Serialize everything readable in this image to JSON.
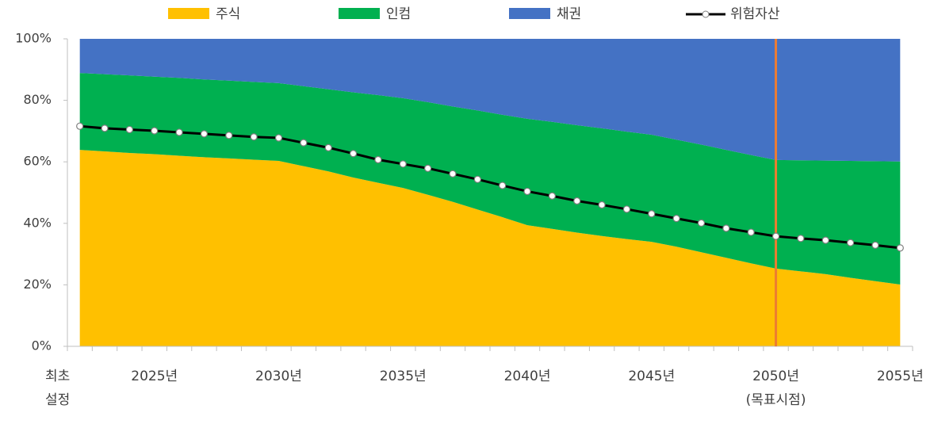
{
  "chart_data": {
    "type": "stacked_area",
    "categories": [
      "최초 설정",
      null,
      null,
      "2025년",
      null,
      null,
      null,
      null,
      "2030년",
      null,
      null,
      null,
      null,
      "2035년",
      null,
      null,
      null,
      null,
      "2040년",
      null,
      null,
      null,
      null,
      "2045년",
      null,
      null,
      null,
      null,
      "2050년",
      null,
      null,
      null,
      null,
      "2055년"
    ],
    "series": [
      {
        "name": "주식",
        "color": "#ffc000",
        "values": [
          63.9,
          63.4,
          62.9,
          62.5,
          62.0,
          61.5,
          61.1,
          60.7,
          60.3,
          58.6,
          56.9,
          54.9,
          53.2,
          51.5,
          49.3,
          47.0,
          44.5,
          42.0,
          39.4,
          38.2,
          37.0,
          35.9,
          34.9,
          34.0,
          32.4,
          30.6,
          28.8,
          27.0,
          25.3,
          24.4,
          23.5,
          22.3,
          21.2,
          20.1
        ]
      },
      {
        "name": "인컴",
        "color": "#00b050",
        "values": [
          25.0,
          25.1,
          25.2,
          25.2,
          25.3,
          25.3,
          25.3,
          25.3,
          25.3,
          26.0,
          26.7,
          27.7,
          28.5,
          29.2,
          30.1,
          31.0,
          32.2,
          33.3,
          34.6,
          34.8,
          34.9,
          35.0,
          34.9,
          34.8,
          34.8,
          35.0,
          35.1,
          35.2,
          35.3,
          36.1,
          36.9,
          38.0,
          39.0,
          40.0
        ]
      },
      {
        "name": "채권",
        "color": "#4472c4",
        "values": [
          11.1,
          11.5,
          11.9,
          12.3,
          12.7,
          13.2,
          13.6,
          14.0,
          14.4,
          15.4,
          16.4,
          17.4,
          18.3,
          19.3,
          20.6,
          22.0,
          23.3,
          24.7,
          26.0,
          27.0,
          28.1,
          29.1,
          30.2,
          31.2,
          32.8,
          34.4,
          36.1,
          37.8,
          39.4,
          39.5,
          39.6,
          39.7,
          39.8,
          39.9
        ]
      }
    ],
    "line_series": {
      "name": "위험자산",
      "color": "#000000",
      "values": [
        71.6,
        70.9,
        70.5,
        70.1,
        69.6,
        69.1,
        68.6,
        68.1,
        67.8,
        66.2,
        64.6,
        62.7,
        60.7,
        59.3,
        57.9,
        56.1,
        54.3,
        52.3,
        50.4,
        48.9,
        47.3,
        46.0,
        44.6,
        43.1,
        41.6,
        40.1,
        38.4,
        37.1,
        35.8,
        35.1,
        34.5,
        33.7,
        32.9,
        32.0
      ]
    },
    "marker_line": {
      "category": "2050년",
      "label": "(목표시점)",
      "color": "#ed7d31"
    },
    "ylim": [
      0,
      100
    ],
    "yticks": [
      {
        "value": 0,
        "label": "0%"
      },
      {
        "value": 20,
        "label": "20%"
      },
      {
        "value": 40,
        "label": "40%"
      },
      {
        "value": 60,
        "label": "60%"
      },
      {
        "value": 80,
        "label": "80%"
      },
      {
        "value": 100,
        "label": "100%"
      }
    ],
    "legend": "top"
  }
}
